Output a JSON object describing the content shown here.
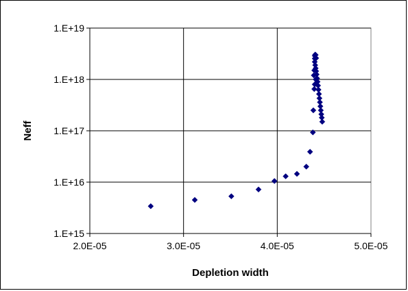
{
  "chart_data": {
    "type": "scatter",
    "title": "",
    "xlabel": "Depletion width",
    "ylabel": "Neff",
    "xlim": [
      2e-05,
      5e-05
    ],
    "ylim": [
      1000000000000000.0,
      1e+19
    ],
    "yscale": "log",
    "grid": true,
    "legend": "none",
    "x_ticks": [
      "2.0E-05",
      "3.0E-05",
      "4.0E-05",
      "5.0E-05"
    ],
    "y_ticks": [
      "1.E+15",
      "1.E+16",
      "1.E+17",
      "1.E+18",
      "1.E+19"
    ],
    "marker_color": "#000080",
    "marker": "diamond",
    "series": [
      {
        "points": [
          [
            2.65e-05,
            3400000000000000.0
          ],
          [
            3.12e-05,
            4500000000000000.0
          ],
          [
            3.51e-05,
            5300000000000000.0
          ],
          [
            3.8e-05,
            7200000000000000.0
          ],
          [
            3.97e-05,
            1.05e+16
          ],
          [
            4.09e-05,
            1.3e+16
          ],
          [
            4.21e-05,
            1.45e+16
          ],
          [
            4.31e-05,
            2e+16
          ],
          [
            4.35e-05,
            3.9e+16
          ],
          [
            4.38e-05,
            9.3e+16
          ],
          [
            4.385e-05,
            2.5e+17
          ],
          [
            4.48e-05,
            1.5e+17
          ],
          [
            4.475e-05,
            1.8e+17
          ],
          [
            4.47e-05,
            2.1e+17
          ],
          [
            4.465e-05,
            2.5e+17
          ],
          [
            4.46e-05,
            3e+17
          ],
          [
            4.455e-05,
            3.6e+17
          ],
          [
            4.45e-05,
            4.3e+17
          ],
          [
            4.445e-05,
            5.2e+17
          ],
          [
            4.44e-05,
            6.3e+17
          ],
          [
            4.435e-05,
            7.6e+17
          ],
          [
            4.43e-05,
            9e+17
          ],
          [
            4.425e-05,
            1.05e+18
          ],
          [
            4.42e-05,
            1.25e+18
          ],
          [
            4.415e-05,
            1.45e+18
          ],
          [
            4.41e-05,
            1.65e+18
          ],
          [
            4.405e-05,
            1.9e+18
          ],
          [
            4.4e-05,
            2.2e+18
          ],
          [
            4.4e-05,
            2.55e+18
          ],
          [
            4.4e-05,
            2.9e+18
          ],
          [
            4.405e-05,
            3.05e+18
          ],
          [
            4.395e-05,
            1.5e+18
          ],
          [
            4.39e-05,
            1.2e+18
          ],
          [
            4.4e-05,
            8e+17
          ],
          [
            4.395e-05,
            6.5e+17
          ],
          [
            4.41e-05,
            1e+18
          ],
          [
            4.415e-05,
            2.6e+18
          ],
          [
            4.41e-05,
            3e+18
          ]
        ]
      }
    ]
  }
}
